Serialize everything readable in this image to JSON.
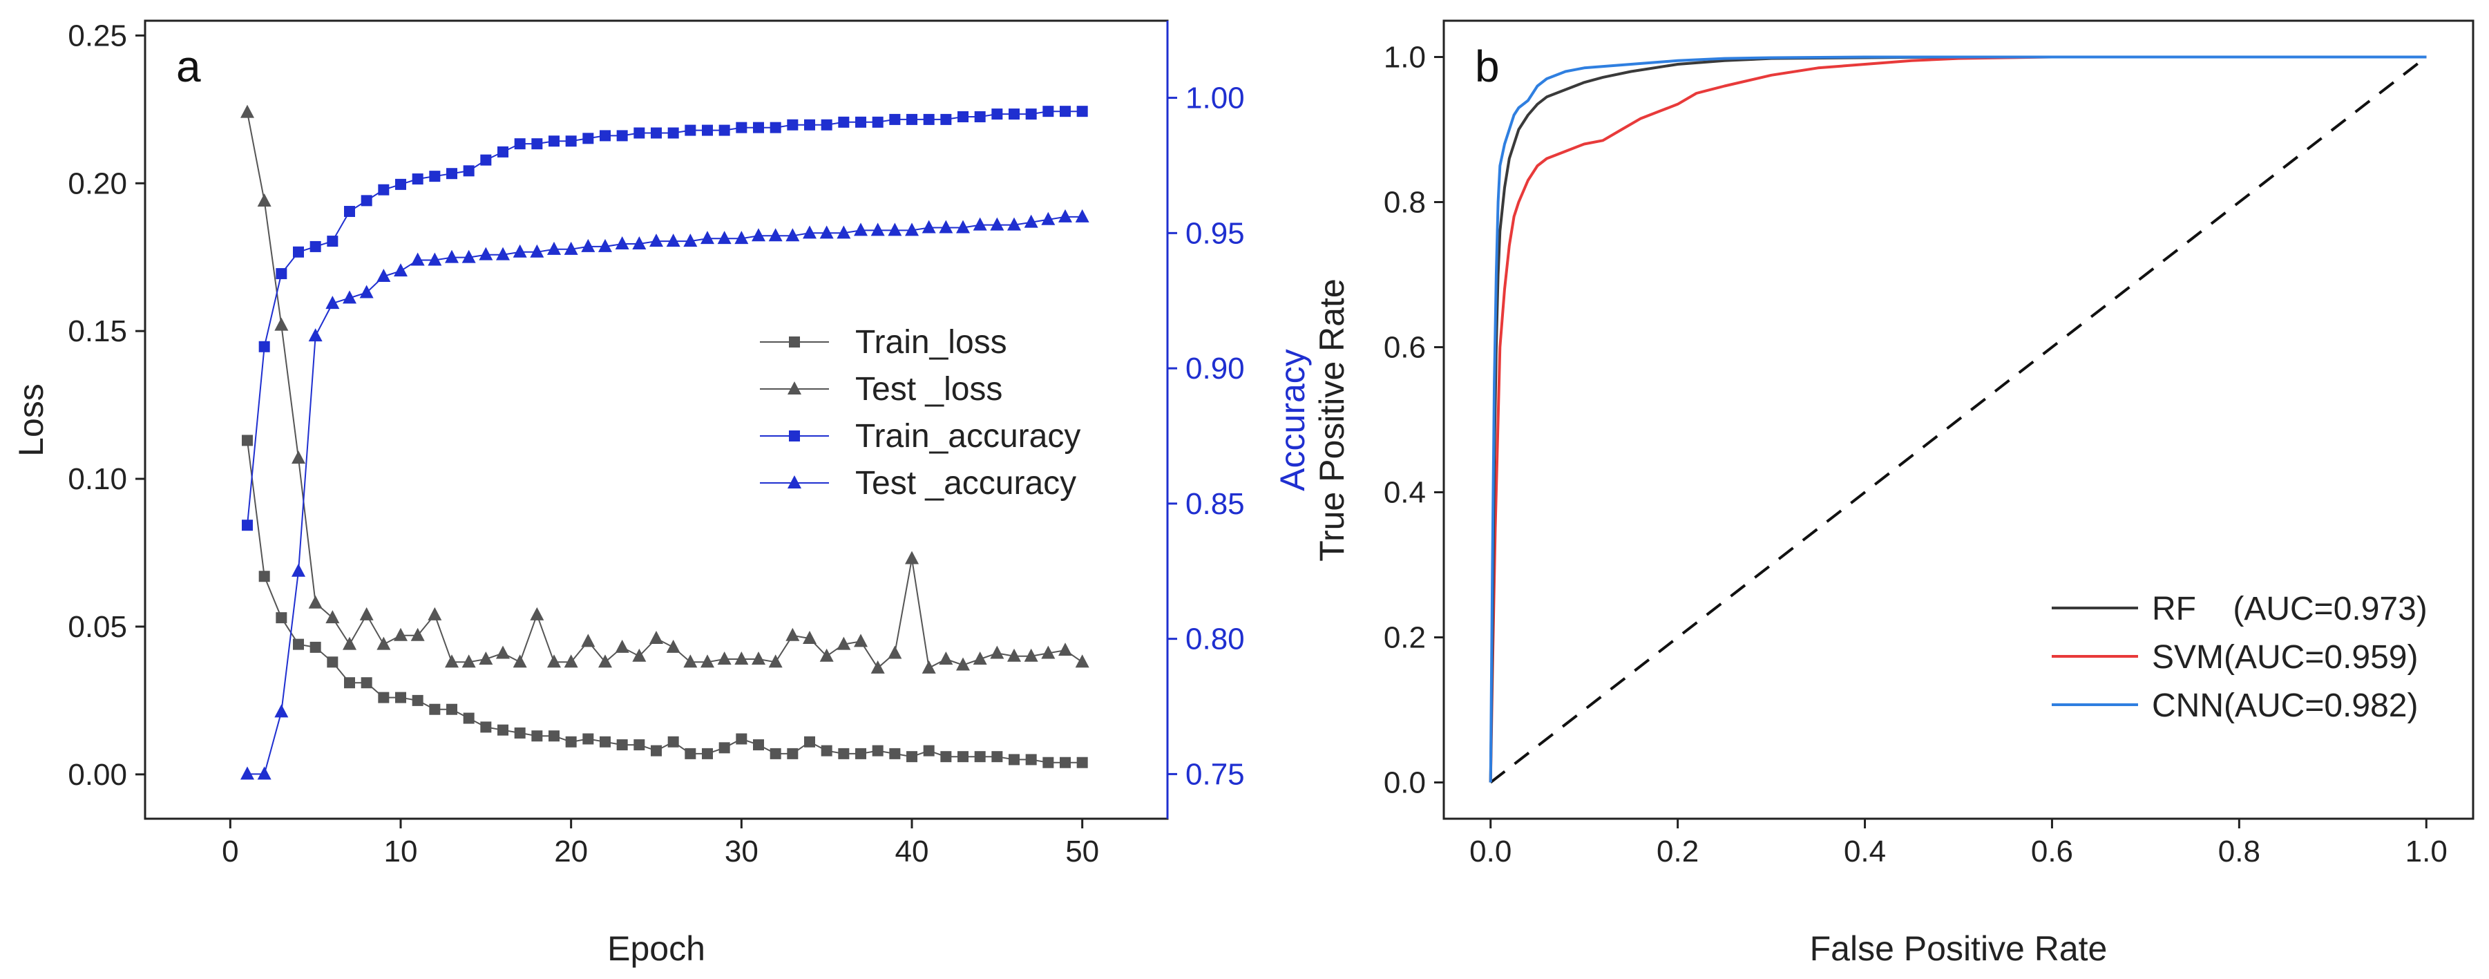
{
  "chart_data": [
    {
      "type": "line",
      "panel_label": "a",
      "xlabel": "Epoch",
      "ylabel": "Loss",
      "y2label": "Accuracy",
      "xlim": [
        -5,
        55
      ],
      "ylim": [
        -0.015,
        0.255
      ],
      "y2lim": [
        0.7335,
        1.0285
      ],
      "xticks": [
        0,
        10,
        20,
        30,
        40,
        50
      ],
      "yticks": [
        "0.00",
        "0.05",
        "0.10",
        "0.15",
        "0.20",
        "0.25"
      ],
      "y2ticks": [
        "0.75",
        "0.80",
        "0.85",
        "0.90",
        "0.95",
        "1.00"
      ],
      "legend_position": "center-right",
      "colors": {
        "loss": "#555555",
        "accuracy": "#1f2fd0"
      },
      "series": [
        {
          "name": "Train_loss",
          "axis": "left",
          "marker": "square",
          "x": [
            1,
            2,
            3,
            4,
            5,
            6,
            7,
            8,
            9,
            10,
            11,
            12,
            13,
            14,
            15,
            16,
            17,
            18,
            19,
            20,
            21,
            22,
            23,
            24,
            25,
            26,
            27,
            28,
            29,
            30,
            31,
            32,
            33,
            34,
            35,
            36,
            37,
            38,
            39,
            40,
            41,
            42,
            43,
            44,
            45,
            46,
            47,
            48,
            49,
            50
          ],
          "values": [
            0.113,
            0.067,
            0.053,
            0.044,
            0.043,
            0.038,
            0.031,
            0.031,
            0.026,
            0.026,
            0.025,
            0.022,
            0.022,
            0.019,
            0.016,
            0.015,
            0.014,
            0.013,
            0.013,
            0.011,
            0.012,
            0.011,
            0.01,
            0.01,
            0.008,
            0.011,
            0.007,
            0.007,
            0.009,
            0.012,
            0.01,
            0.007,
            0.007,
            0.011,
            0.008,
            0.007,
            0.007,
            0.008,
            0.007,
            0.006,
            0.008,
            0.006,
            0.006,
            0.006,
            0.006,
            0.005,
            0.005,
            0.004,
            0.004,
            0.004
          ]
        },
        {
          "name": "Test _loss",
          "axis": "left",
          "marker": "triangle",
          "x": [
            1,
            2,
            3,
            4,
            5,
            6,
            7,
            8,
            9,
            10,
            11,
            12,
            13,
            14,
            15,
            16,
            17,
            18,
            19,
            20,
            21,
            22,
            23,
            24,
            25,
            26,
            27,
            28,
            29,
            30,
            31,
            32,
            33,
            34,
            35,
            36,
            37,
            38,
            39,
            40,
            41,
            42,
            43,
            44,
            45,
            46,
            47,
            48,
            49,
            50
          ],
          "values": [
            0.224,
            0.194,
            0.152,
            0.107,
            0.058,
            0.053,
            0.044,
            0.054,
            0.044,
            0.047,
            0.047,
            0.054,
            0.038,
            0.038,
            0.039,
            0.041,
            0.038,
            0.054,
            0.038,
            0.038,
            0.045,
            0.038,
            0.043,
            0.04,
            0.046,
            0.043,
            0.038,
            0.038,
            0.039,
            0.039,
            0.039,
            0.038,
            0.047,
            0.046,
            0.04,
            0.044,
            0.045,
            0.036,
            0.041,
            0.073,
            0.036,
            0.039,
            0.037,
            0.039,
            0.041,
            0.04,
            0.04,
            0.041,
            0.042,
            0.038
          ]
        },
        {
          "name": "Train_accuracy",
          "axis": "right",
          "marker": "square",
          "x": [
            1,
            2,
            3,
            4,
            5,
            6,
            7,
            8,
            9,
            10,
            11,
            12,
            13,
            14,
            15,
            16,
            17,
            18,
            19,
            20,
            21,
            22,
            23,
            24,
            25,
            26,
            27,
            28,
            29,
            30,
            31,
            32,
            33,
            34,
            35,
            36,
            37,
            38,
            39,
            40,
            41,
            42,
            43,
            44,
            45,
            46,
            47,
            48,
            49,
            50
          ],
          "values": [
            0.842,
            0.908,
            0.935,
            0.943,
            0.945,
            0.947,
            0.958,
            0.962,
            0.966,
            0.968,
            0.97,
            0.971,
            0.972,
            0.973,
            0.977,
            0.98,
            0.983,
            0.983,
            0.984,
            0.984,
            0.985,
            0.986,
            0.986,
            0.987,
            0.987,
            0.987,
            0.988,
            0.988,
            0.988,
            0.989,
            0.989,
            0.989,
            0.99,
            0.99,
            0.99,
            0.991,
            0.991,
            0.991,
            0.992,
            0.992,
            0.992,
            0.992,
            0.993,
            0.993,
            0.994,
            0.994,
            0.994,
            0.995,
            0.995,
            0.995
          ]
        },
        {
          "name": "Test _accuracy",
          "axis": "right",
          "marker": "triangle",
          "x": [
            1,
            2,
            3,
            4,
            5,
            6,
            7,
            8,
            9,
            10,
            11,
            12,
            13,
            14,
            15,
            16,
            17,
            18,
            19,
            20,
            21,
            22,
            23,
            24,
            25,
            26,
            27,
            28,
            29,
            30,
            31,
            32,
            33,
            34,
            35,
            36,
            37,
            38,
            39,
            40,
            41,
            42,
            43,
            44,
            45,
            46,
            47,
            48,
            49,
            50
          ],
          "values": [
            0.75,
            0.75,
            0.773,
            0.825,
            0.912,
            0.924,
            0.926,
            0.928,
            0.934,
            0.936,
            0.94,
            0.94,
            0.941,
            0.941,
            0.942,
            0.942,
            0.943,
            0.943,
            0.944,
            0.944,
            0.945,
            0.945,
            0.946,
            0.946,
            0.947,
            0.947,
            0.947,
            0.948,
            0.948,
            0.948,
            0.949,
            0.949,
            0.949,
            0.95,
            0.95,
            0.95,
            0.951,
            0.951,
            0.951,
            0.951,
            0.952,
            0.952,
            0.952,
            0.953,
            0.953,
            0.953,
            0.954,
            0.955,
            0.956,
            0.956
          ]
        }
      ]
    },
    {
      "type": "line",
      "panel_label": "b",
      "xlabel": "False Positive Rate",
      "ylabel": "True Positive Rate",
      "xlim": [
        -0.05,
        1.05
      ],
      "ylim": [
        -0.05,
        1.05
      ],
      "xticks": [
        "0.0",
        "0.2",
        "0.4",
        "0.6",
        "0.8",
        "1.0"
      ],
      "yticks": [
        "0.0",
        "0.2",
        "0.4",
        "0.6",
        "0.8",
        "1.0"
      ],
      "legend_position": "bottom-right",
      "diagonal": {
        "style": "dashed",
        "color": "#111111",
        "x": [
          0,
          1
        ],
        "values": [
          0,
          1
        ]
      },
      "series": [
        {
          "name": "RF    (AUC=0.973)",
          "color": "#3a3a3a",
          "x": [
            0,
            0.002,
            0.004,
            0.006,
            0.008,
            0.01,
            0.015,
            0.02,
            0.025,
            0.03,
            0.04,
            0.05,
            0.06,
            0.08,
            0.1,
            0.12,
            0.15,
            0.2,
            0.25,
            0.3,
            0.4,
            0.5,
            0.6,
            0.8,
            1.0
          ],
          "values": [
            0,
            0.2,
            0.45,
            0.6,
            0.7,
            0.76,
            0.82,
            0.86,
            0.88,
            0.9,
            0.92,
            0.935,
            0.945,
            0.955,
            0.965,
            0.972,
            0.98,
            0.99,
            0.995,
            0.998,
            0.999,
            1.0,
            1.0,
            1.0,
            1.0
          ]
        },
        {
          "name": "SVM(AUC=0.959)",
          "color": "#e83a3a",
          "x": [
            0,
            0.002,
            0.005,
            0.008,
            0.01,
            0.015,
            0.02,
            0.025,
            0.03,
            0.04,
            0.05,
            0.06,
            0.08,
            0.1,
            0.12,
            0.14,
            0.16,
            0.18,
            0.2,
            0.22,
            0.25,
            0.3,
            0.35,
            0.4,
            0.45,
            0.5,
            0.6,
            0.8,
            1.0
          ],
          "values": [
            0,
            0.15,
            0.35,
            0.5,
            0.6,
            0.68,
            0.74,
            0.78,
            0.8,
            0.83,
            0.85,
            0.86,
            0.87,
            0.88,
            0.885,
            0.9,
            0.915,
            0.925,
            0.935,
            0.95,
            0.96,
            0.975,
            0.985,
            0.99,
            0.995,
            0.998,
            1.0,
            1.0,
            1.0
          ]
        },
        {
          "name": "CNN(AUC=0.982)",
          "color": "#2f7fe0",
          "x": [
            0,
            0.002,
            0.004,
            0.006,
            0.008,
            0.01,
            0.015,
            0.02,
            0.025,
            0.03,
            0.04,
            0.05,
            0.06,
            0.08,
            0.1,
            0.15,
            0.2,
            0.25,
            0.3,
            0.4,
            0.5,
            0.6,
            0.8,
            1.0
          ],
          "values": [
            0,
            0.3,
            0.55,
            0.7,
            0.8,
            0.85,
            0.88,
            0.9,
            0.92,
            0.93,
            0.94,
            0.96,
            0.97,
            0.98,
            0.985,
            0.99,
            0.995,
            0.998,
            0.999,
            1.0,
            1.0,
            1.0,
            1.0,
            1.0
          ]
        }
      ]
    }
  ]
}
